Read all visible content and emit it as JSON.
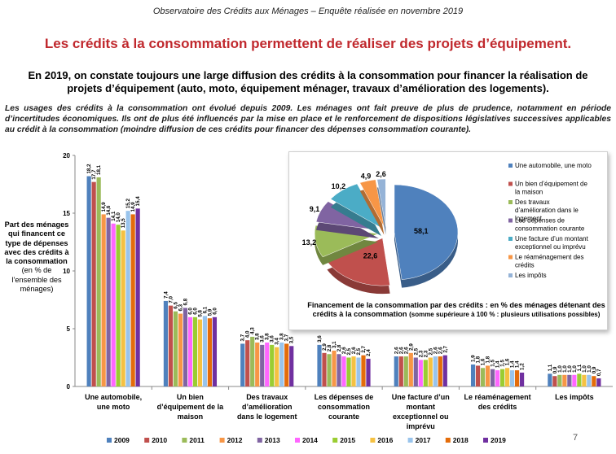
{
  "header": "Observatoire des Crédits aux Ménages – Enquête réalisée en novembre 2019",
  "title": "Les crédits à la consommation permettent de réaliser des projets d’équipement.",
  "intro": "En 2019, on constate toujours une large diffusion des crédits à la consommation pour financer la réalisation de projets d’équipement (auto, moto, équipement ménager, travaux d’amélioration des logements).",
  "paragraph": "Les usages des crédits à la consommation ont évolué depuis 2009. Les ménages ont fait preuve de plus de prudence, notamment en période d’incertitudes économiques. Ils ont de plus été influencés par la mise en place et le renforcement de dispositions législatives successives applicables au crédit à la consommation (moindre diffusion de ces crédits pour financer des dépenses consommation courante).",
  "y_label": "Part des ménages qui financent ce type de dépenses avec des crédits à la consommation",
  "y_label_unit": "(en % de l’ensemble des ménages)",
  "page_number": "7",
  "colors": {
    "title": "#c0282d",
    "years": [
      "#4f81bd",
      "#c0504d",
      "#9bbb59",
      "#f79646",
      "#8064a2",
      "#ff66ff",
      "#9acd32",
      "#f5c142",
      "#99c4ec",
      "#e46c0a",
      "#7030a0"
    ]
  },
  "chart_data": [
    {
      "type": "bar",
      "ylim": [
        0,
        20
      ],
      "yticks": [
        0,
        5,
        10,
        15,
        20
      ],
      "categories": [
        "Une automobile, une moto",
        "Un bien d’équipement de la maison",
        "Des travaux d’amélioration dans le logement",
        "Les dépenses de consommation courante",
        "Une facture d’un montant exceptionnel ou imprévu",
        "Le réaménagement des crédits",
        "Les impôts"
      ],
      "series": [
        {
          "name": "2009",
          "values": [
            18.2,
            7.4,
            3.7,
            3.6,
            2.6,
            1.9,
            1.1
          ]
        },
        {
          "name": "2010",
          "values": [
            17.7,
            7.0,
            4.0,
            2.9,
            2.6,
            1.8,
            0.9
          ]
        },
        {
          "name": "2011",
          "values": [
            18.1,
            6.5,
            4.3,
            2.8,
            2.6,
            1.6,
            1.0
          ]
        },
        {
          "name": "2012",
          "values": [
            14.9,
            6.3,
            3.8,
            3.1,
            2.9,
            1.8,
            1.0
          ]
        },
        {
          "name": "2013",
          "values": [
            14.6,
            6.8,
            3.6,
            2.8,
            2.5,
            1.5,
            1.0
          ]
        },
        {
          "name": "2014",
          "values": [
            14.1,
            6.0,
            3.8,
            2.6,
            2.3,
            1.4,
            1.0
          ]
        },
        {
          "name": "2015",
          "values": [
            14.0,
            6.0,
            3.6,
            2.5,
            2.3,
            1.5,
            1.1
          ]
        },
        {
          "name": "2016",
          "values": [
            13.5,
            5.8,
            3.4,
            2.6,
            2.5,
            1.6,
            1.0
          ]
        },
        {
          "name": "2017",
          "values": [
            15.2,
            6.1,
            3.8,
            2.5,
            2.6,
            1.4,
            1.0
          ]
        },
        {
          "name": "2018",
          "values": [
            14.9,
            5.9,
            3.7,
            2.7,
            2.6,
            1.4,
            0.9
          ]
        },
        {
          "name": "2019",
          "values": [
            15.4,
            6.0,
            3.5,
            2.4,
            2.7,
            1.2,
            0.7
          ]
        }
      ]
    },
    {
      "type": "pie",
      "title": "Financement de la consommation par des crédits : en % des ménages détenant des crédits à la consommation",
      "subtitle": "(somme supérieure à 100 % : plusieurs utilisations possibles)",
      "slices": [
        {
          "label": "Une automobile, une moto",
          "value": 58.1,
          "color": "#4f81bd"
        },
        {
          "label": "Un bien d’équipement de la maison",
          "value": 22.6,
          "color": "#c0504d"
        },
        {
          "label": "Des travaux d’amélioration dans le logement",
          "value": 13.2,
          "color": "#9bbb59"
        },
        {
          "label": "Les dépenses de consommation courante",
          "value": 9.1,
          "color": "#8064a2"
        },
        {
          "label": "Une facture d’un montant exceptionnel ou imprévu",
          "value": 10.2,
          "color": "#4bacc6"
        },
        {
          "label": "Le réaménagement des crédits",
          "value": 4.9,
          "color": "#f79646"
        },
        {
          "label": "Les impôts",
          "value": 2.6,
          "color": "#95b3d7"
        }
      ]
    }
  ]
}
